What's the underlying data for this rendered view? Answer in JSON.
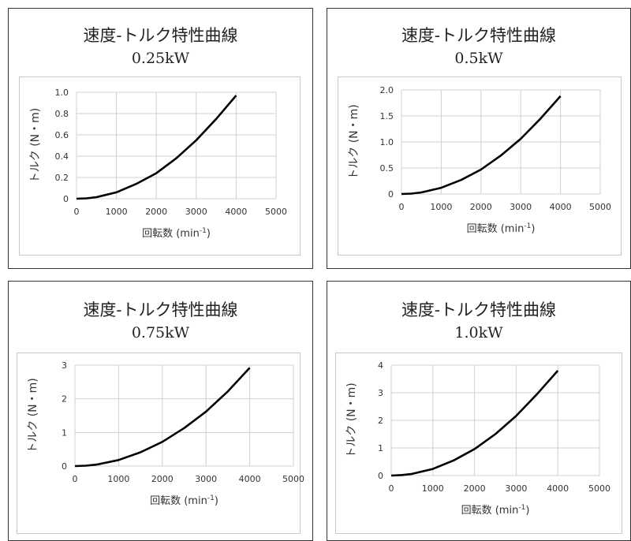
{
  "chart_data": [
    {
      "type": "line",
      "title": "速度-トルク特性曲線",
      "subtitle": "0.25kW",
      "xlabel": "回転数 (min",
      "xlabel_sup": "-1",
      "xlabel_close": ")",
      "ylabel": "トルク (N・m)",
      "xlim": [
        0,
        5000
      ],
      "ylim": [
        0,
        1.0
      ],
      "xticks": [
        0,
        1000,
        2000,
        3000,
        4000,
        5000
      ],
      "xtick_labels": [
        "0",
        "1000",
        "2000",
        "3000",
        "4000",
        "5000"
      ],
      "yticks": [
        0,
        0.2,
        0.4,
        0.6,
        0.8,
        1.0
      ],
      "ytick_labels": [
        "0",
        "0.2",
        "0.4",
        "0.6",
        "0.8",
        "1.0"
      ],
      "grid": true,
      "series": [
        {
          "x": [
            0,
            250,
            500,
            1000,
            1500,
            2000,
            2500,
            3000,
            3500,
            4000
          ],
          "y": [
            0,
            0.004,
            0.015,
            0.06,
            0.14,
            0.24,
            0.38,
            0.55,
            0.75,
            0.97
          ]
        }
      ]
    },
    {
      "type": "line",
      "title": "速度-トルク特性曲線",
      "subtitle": "0.5kW",
      "xlabel": "回転数 (min",
      "xlabel_sup": "-1",
      "xlabel_close": ")",
      "ylabel": "トルク (N・m)",
      "xlim": [
        0,
        5000
      ],
      "ylim": [
        0,
        2.0
      ],
      "xticks": [
        0,
        1000,
        2000,
        3000,
        4000,
        5000
      ],
      "xtick_labels": [
        "0",
        "1000",
        "2000",
        "3000",
        "4000",
        "5000"
      ],
      "yticks": [
        0,
        0.5,
        1.0,
        1.5,
        2.0
      ],
      "ytick_labels": [
        "0",
        "0.5",
        "1.0",
        "1.5",
        "2.0"
      ],
      "grid": true,
      "series": [
        {
          "x": [
            0,
            250,
            500,
            1000,
            1500,
            2000,
            2500,
            3000,
            3500,
            4000
          ],
          "y": [
            0,
            0.008,
            0.03,
            0.12,
            0.27,
            0.47,
            0.74,
            1.06,
            1.45,
            1.88
          ]
        }
      ]
    },
    {
      "type": "line",
      "title": "速度-トルク特性曲線",
      "subtitle": "0.75kW",
      "xlabel": "回転数 (min",
      "xlabel_sup": "-1",
      "xlabel_close": ")",
      "ylabel": "トルク (N・m)",
      "xlim": [
        0,
        5000
      ],
      "ylim": [
        0,
        3
      ],
      "xticks": [
        0,
        1000,
        2000,
        3000,
        4000,
        5000
      ],
      "xtick_labels": [
        "0",
        "1000",
        "2000",
        "3000",
        "4000",
        "5000"
      ],
      "yticks": [
        0,
        1,
        2,
        3
      ],
      "ytick_labels": [
        "0",
        "1",
        "2",
        "3"
      ],
      "grid": true,
      "series": [
        {
          "x": [
            0,
            250,
            500,
            1000,
            1500,
            2000,
            2500,
            3000,
            3500,
            4000
          ],
          "y": [
            0,
            0.012,
            0.045,
            0.18,
            0.41,
            0.72,
            1.13,
            1.62,
            2.22,
            2.92
          ]
        }
      ]
    },
    {
      "type": "line",
      "title": "速度-トルク特性曲線",
      "subtitle": "1.0kW",
      "xlabel": "回転数 (min",
      "xlabel_sup": "-1",
      "xlabel_close": ")",
      "ylabel": "トルク (N・m)",
      "xlim": [
        0,
        5000
      ],
      "ylim": [
        0,
        4
      ],
      "xticks": [
        0,
        1000,
        2000,
        3000,
        4000,
        5000
      ],
      "xtick_labels": [
        "0",
        "1000",
        "2000",
        "3000",
        "4000",
        "5000"
      ],
      "yticks": [
        0,
        1,
        2,
        3,
        4
      ],
      "ytick_labels": [
        "0",
        "1",
        "2",
        "3",
        "4"
      ],
      "grid": true,
      "series": [
        {
          "x": [
            0,
            250,
            500,
            1000,
            1500,
            2000,
            2500,
            3000,
            3500,
            4000
          ],
          "y": [
            0,
            0.016,
            0.06,
            0.24,
            0.55,
            0.96,
            1.5,
            2.16,
            2.95,
            3.8
          ]
        }
      ]
    }
  ],
  "style": {
    "line_color": "#000000",
    "grid_color": "#d0d0d0"
  }
}
